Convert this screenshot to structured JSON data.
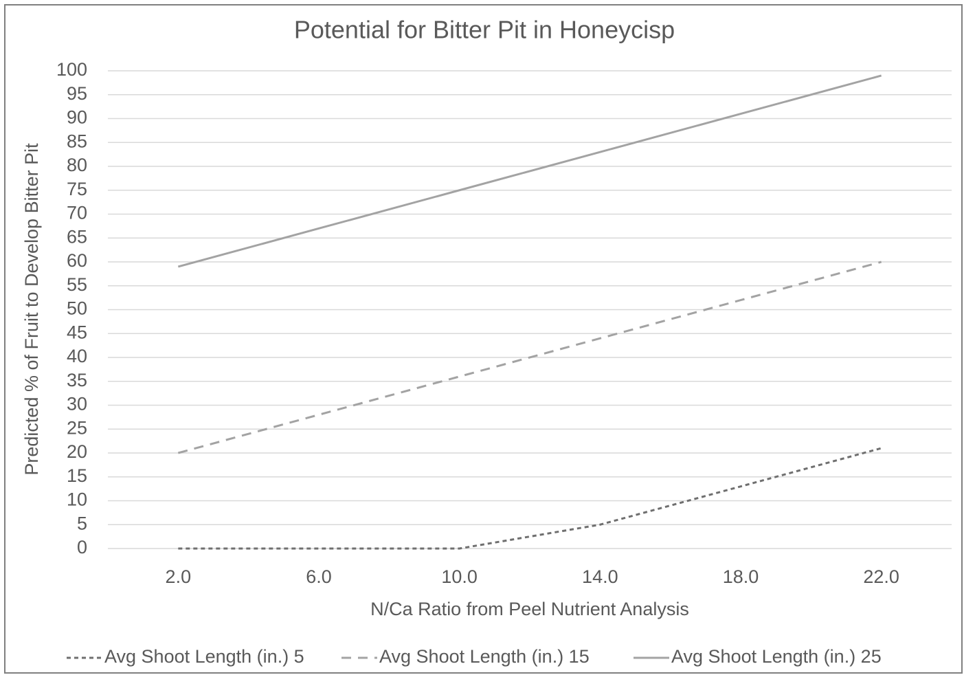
{
  "chart_data": {
    "type": "line",
    "title": "Potential for Bitter Pit in Honeycisp",
    "x_label": "N/Ca Ratio from Peel Nutrient Analysis",
    "y_label": "Predicted % of Fruit to Develop Bitter Pit",
    "categories": [
      "2.0",
      "6.0",
      "10.0",
      "14.0",
      "18.0",
      "22.0"
    ],
    "series": [
      {
        "name": "Avg Shoot Length (in.) 5",
        "color": "#6f6f6f",
        "dash": "dot",
        "values": [
          0,
          0,
          0,
          5,
          13,
          21
        ]
      },
      {
        "name": "Avg Shoot Length (in.) 15",
        "color": "#a3a3a3",
        "dash": "dash",
        "values": [
          20,
          28,
          36,
          44,
          52,
          60
        ]
      },
      {
        "name": "Avg Shoot Length (in.) 25",
        "color": "#a3a3a3",
        "dash": "solid",
        "values": [
          59,
          67,
          75,
          83,
          91,
          99
        ]
      }
    ],
    "ylim": [
      0,
      100
    ],
    "yticks": [
      0,
      5,
      10,
      15,
      20,
      25,
      30,
      35,
      40,
      45,
      50,
      55,
      60,
      65,
      70,
      75,
      80,
      85,
      90,
      95,
      100
    ],
    "grid": true,
    "legend": "bottom"
  }
}
